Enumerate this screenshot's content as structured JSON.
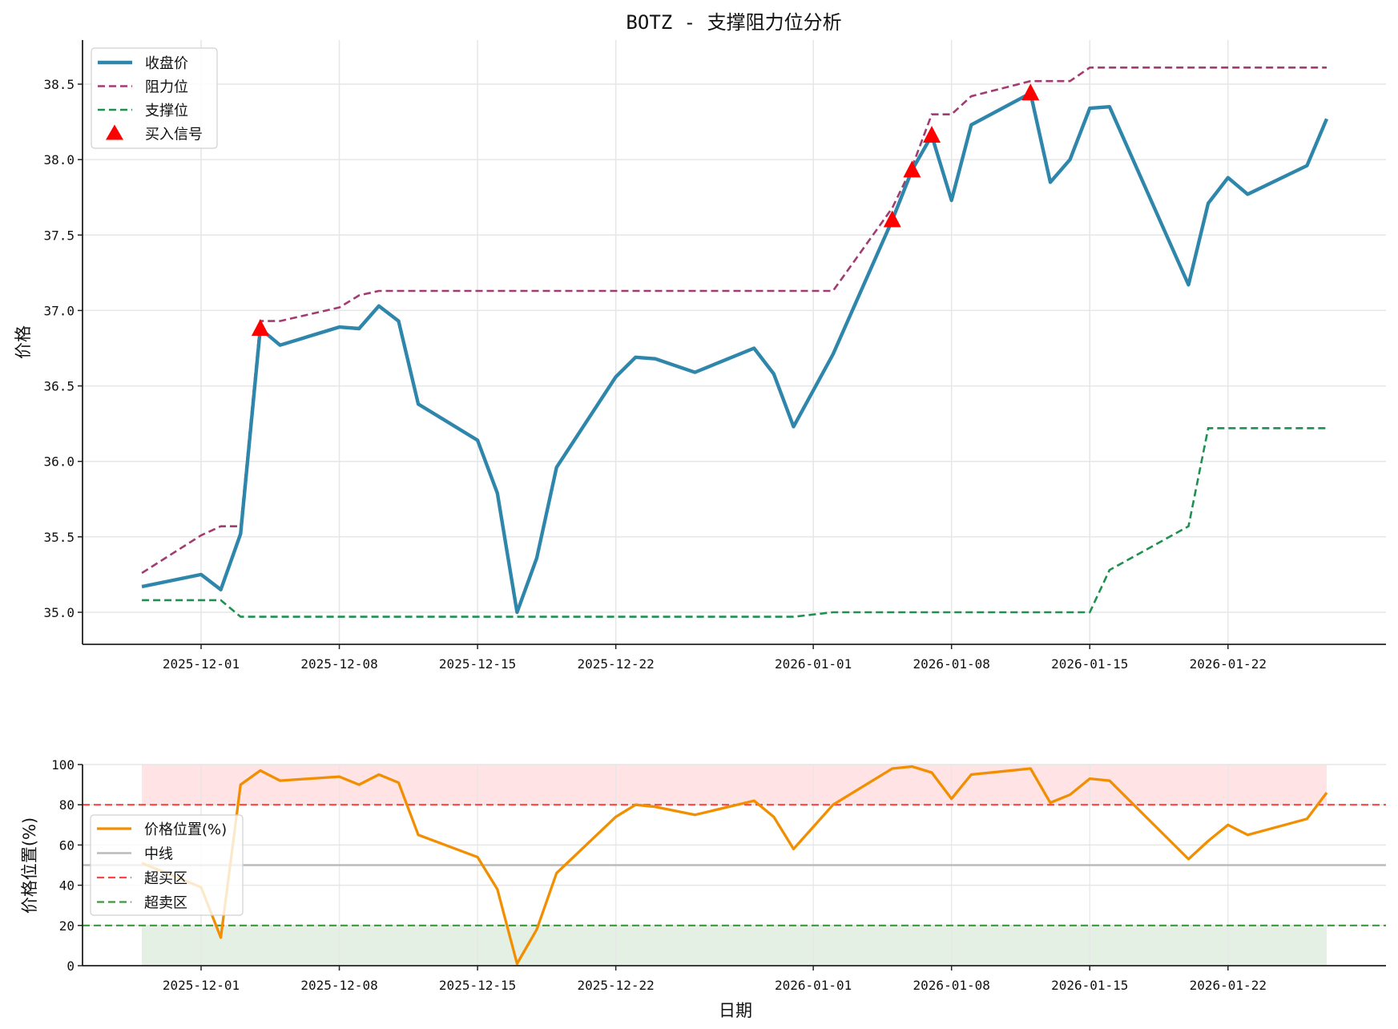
{
  "figure": {
    "title": "BOTZ - 支撑阻力位分析"
  },
  "colors": {
    "close": "#2e86ab",
    "resistance": "#a23b72",
    "support": "#1e9150",
    "buy_signal": "#ff0000",
    "position": "#f18f01",
    "midline": "#bbbbbb",
    "overbought": "#ff4444",
    "oversold": "#3a9a3a",
    "overbought_fill": "#ffe3e5",
    "oversold_fill": "#e4f0e4",
    "grid": "#e6e6e6"
  },
  "chart_data": [
    {
      "type": "line",
      "title": "BOTZ - 支撑阻力位分析",
      "xlabel": "",
      "ylabel": "价格",
      "ylim": [
        34.79,
        38.79
      ],
      "yticks": [
        35.0,
        35.5,
        36.0,
        36.5,
        37.0,
        37.5,
        38.0,
        38.5
      ],
      "ytick_labels": [
        "35.0",
        "35.5",
        "36.0",
        "36.5",
        "37.0",
        "37.5",
        "38.0",
        "38.5"
      ],
      "xticks": [
        "2025-12-01",
        "2025-12-08",
        "2025-12-15",
        "2025-12-22",
        "2026-01-01",
        "2026-01-08",
        "2026-01-15",
        "2026-01-22"
      ],
      "grid": true,
      "legend_position": "upper left",
      "x": [
        "2025-11-28",
        "2025-12-01",
        "2025-12-02",
        "2025-12-03",
        "2025-12-04",
        "2025-12-05",
        "2025-12-08",
        "2025-12-09",
        "2025-12-10",
        "2025-12-11",
        "2025-12-12",
        "2025-12-15",
        "2025-12-16",
        "2025-12-17",
        "2025-12-18",
        "2025-12-19",
        "2025-12-22",
        "2025-12-23",
        "2025-12-24",
        "2025-12-26",
        "2025-12-29",
        "2025-12-30",
        "2025-12-31",
        "2026-01-02",
        "2026-01-05",
        "2026-01-06",
        "2026-01-07",
        "2026-01-08",
        "2026-01-09",
        "2026-01-12",
        "2026-01-13",
        "2026-01-14",
        "2026-01-15",
        "2026-01-16",
        "2026-01-20",
        "2026-01-21",
        "2026-01-22",
        "2026-01-23",
        "2026-01-26",
        "2026-01-27"
      ],
      "series": [
        {
          "name": "收盘价",
          "style": "solid",
          "values": [
            35.17,
            35.25,
            35.15,
            35.52,
            36.88,
            36.77,
            36.89,
            36.88,
            37.03,
            36.93,
            36.38,
            36.14,
            35.79,
            35.0,
            35.36,
            35.96,
            36.56,
            36.69,
            36.68,
            36.59,
            36.75,
            36.58,
            36.23,
            36.71,
            37.6,
            37.93,
            38.16,
            37.73,
            38.23,
            38.44,
            37.85,
            38.0,
            38.34,
            38.35,
            37.17,
            37.71,
            37.88,
            37.77,
            37.96,
            38.27
          ]
        },
        {
          "name": "阻力位",
          "style": "dashed",
          "values": [
            35.26,
            35.51,
            35.57,
            35.57,
            36.93,
            36.93,
            37.02,
            37.1,
            37.13,
            37.13,
            37.13,
            37.13,
            37.13,
            37.13,
            37.13,
            37.13,
            37.13,
            37.13,
            37.13,
            37.13,
            37.13,
            37.13,
            37.13,
            37.13,
            37.68,
            37.95,
            38.3,
            38.3,
            38.42,
            38.52,
            38.52,
            38.52,
            38.61,
            38.61,
            38.61,
            38.61,
            38.61,
            38.61,
            38.61,
            38.61
          ]
        },
        {
          "name": "支撑位",
          "style": "dashed",
          "values": [
            35.08,
            35.08,
            35.08,
            34.97,
            34.97,
            34.97,
            34.97,
            34.97,
            34.97,
            34.97,
            34.97,
            34.97,
            34.97,
            34.97,
            34.97,
            34.97,
            34.97,
            34.97,
            34.97,
            34.97,
            34.97,
            34.97,
            34.97,
            35.0,
            35.0,
            35.0,
            35.0,
            35.0,
            35.0,
            35.0,
            35.0,
            35.0,
            35.0,
            35.28,
            35.57,
            36.22,
            36.22,
            36.22,
            36.22,
            36.22
          ]
        },
        {
          "name": "买入信号",
          "style": "marker-triangle",
          "points": [
            {
              "x": "2025-12-04",
              "y": 36.88
            },
            {
              "x": "2026-01-05",
              "y": 37.6
            },
            {
              "x": "2026-01-06",
              "y": 37.93
            },
            {
              "x": "2026-01-07",
              "y": 38.16
            },
            {
              "x": "2026-01-12",
              "y": 38.44
            }
          ]
        }
      ]
    },
    {
      "type": "line",
      "title": "",
      "xlabel": "日期",
      "ylabel": "价格位置(%)",
      "ylim": [
        0,
        100
      ],
      "yticks": [
        0,
        20,
        40,
        60,
        80,
        100
      ],
      "ytick_labels": [
        "0",
        "20",
        "40",
        "60",
        "80",
        "100"
      ],
      "xticks": [
        "2025-12-01",
        "2025-12-08",
        "2025-12-15",
        "2025-12-22",
        "2026-01-01",
        "2026-01-08",
        "2026-01-15",
        "2026-01-22"
      ],
      "grid": true,
      "legend_position": "center left",
      "x": [
        "2025-11-28",
        "2025-12-01",
        "2025-12-02",
        "2025-12-03",
        "2025-12-04",
        "2025-12-05",
        "2025-12-08",
        "2025-12-09",
        "2025-12-10",
        "2025-12-11",
        "2025-12-12",
        "2025-12-15",
        "2025-12-16",
        "2025-12-17",
        "2025-12-18",
        "2025-12-19",
        "2025-12-22",
        "2025-12-23",
        "2025-12-24",
        "2025-12-26",
        "2025-12-29",
        "2025-12-30",
        "2025-12-31",
        "2026-01-02",
        "2026-01-05",
        "2026-01-06",
        "2026-01-07",
        "2026-01-08",
        "2026-01-09",
        "2026-01-12",
        "2026-01-13",
        "2026-01-14",
        "2026-01-15",
        "2026-01-16",
        "2026-01-20",
        "2026-01-21",
        "2026-01-22",
        "2026-01-23",
        "2026-01-26",
        "2026-01-27"
      ],
      "series": [
        {
          "name": "价格位置(%)",
          "style": "solid",
          "values": [
            51,
            39,
            14,
            90,
            97,
            92,
            94,
            90,
            95,
            91,
            65,
            54,
            38,
            1,
            18,
            46,
            74,
            80,
            79,
            75,
            82,
            74,
            58,
            80,
            98,
            99,
            96,
            83,
            95,
            98,
            81,
            85,
            93,
            92,
            53,
            62,
            70,
            65,
            73,
            86
          ]
        },
        {
          "name": "中线",
          "style": "solid",
          "y": 50
        },
        {
          "name": "超买区",
          "style": "dashed",
          "y": 80
        },
        {
          "name": "超卖区",
          "style": "dashed",
          "y": 20
        }
      ],
      "shaded_regions": [
        {
          "from": 80,
          "to": 100,
          "x_range": [
            "2025-11-28",
            "2026-01-27"
          ],
          "label": "overbought-zone"
        },
        {
          "from": 0,
          "to": 20,
          "x_range": [
            "2025-11-28",
            "2026-01-27"
          ],
          "label": "oversold-zone"
        }
      ]
    }
  ]
}
